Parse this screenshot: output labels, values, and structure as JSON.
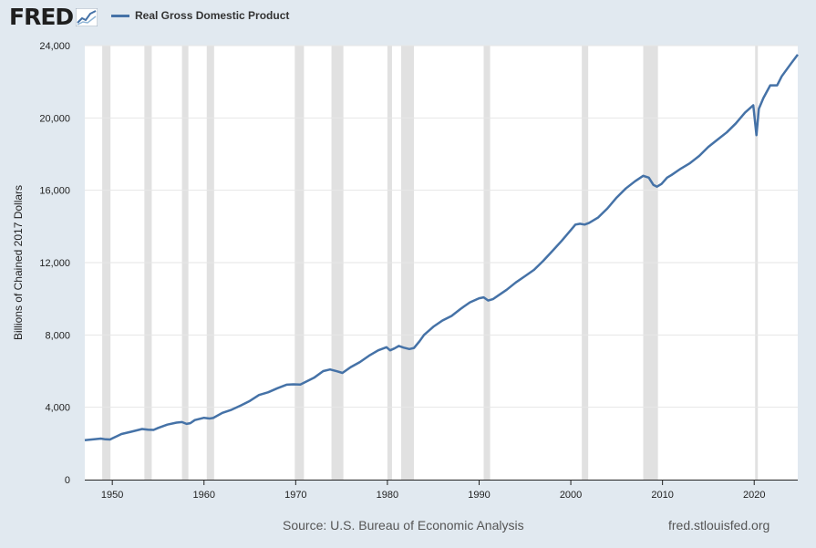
{
  "logo": {
    "text": "FRED",
    "icon": "line-chart-icon"
  },
  "legend": {
    "label": "Real Gross Domestic Product",
    "color": "#4572a7"
  },
  "footer": {
    "source": "Source: U.S. Bureau of Economic Analysis",
    "credit": "fred.stlouisfed.org"
  },
  "chart_data": {
    "type": "line",
    "ylabel": "Billions of Chained 2017 Dollars",
    "xlim": [
      1947,
      2024.75
    ],
    "ylim": [
      0,
      24000
    ],
    "yticks": [
      0,
      4000,
      8000,
      12000,
      16000,
      20000,
      24000
    ],
    "ytick_labels": [
      "0",
      "4,000",
      "8,000",
      "12,000",
      "16,000",
      "20,000",
      "24,000"
    ],
    "xticks": [
      1950,
      1960,
      1970,
      1980,
      1990,
      2000,
      2010,
      2020
    ],
    "xtick_labels": [
      "1950",
      "1960",
      "1970",
      "1980",
      "1990",
      "2000",
      "2010",
      "2020"
    ],
    "grid": true,
    "recession_color": "#e1e1e1",
    "recessions": [
      [
        1948.9,
        1949.8
      ],
      [
        1953.5,
        1954.3
      ],
      [
        1957.6,
        1958.3
      ],
      [
        1960.3,
        1961.1
      ],
      [
        1969.9,
        1970.9
      ],
      [
        1973.9,
        1975.2
      ],
      [
        1980.0,
        1980.5
      ],
      [
        1981.5,
        1982.9
      ],
      [
        1990.5,
        1991.2
      ],
      [
        2001.2,
        2001.9
      ],
      [
        2007.9,
        2009.5
      ],
      [
        2020.1,
        2020.4
      ]
    ],
    "series": [
      {
        "color": "#4572a7",
        "points": [
          [
            1947.0,
            2180
          ],
          [
            1948.0,
            2230
          ],
          [
            1948.75,
            2270
          ],
          [
            1949.25,
            2230
          ],
          [
            1949.75,
            2220
          ],
          [
            1950.0,
            2280
          ],
          [
            1951.0,
            2520
          ],
          [
            1952.0,
            2640
          ],
          [
            1953.25,
            2800
          ],
          [
            1953.9,
            2760
          ],
          [
            1954.5,
            2750
          ],
          [
            1955.0,
            2860
          ],
          [
            1956.0,
            3040
          ],
          [
            1957.0,
            3150
          ],
          [
            1957.6,
            3180
          ],
          [
            1958.1,
            3080
          ],
          [
            1958.5,
            3120
          ],
          [
            1959.0,
            3290
          ],
          [
            1960.0,
            3420
          ],
          [
            1960.6,
            3380
          ],
          [
            1961.0,
            3410
          ],
          [
            1962.0,
            3690
          ],
          [
            1963.0,
            3860
          ],
          [
            1964.0,
            4100
          ],
          [
            1965.0,
            4350
          ],
          [
            1966.0,
            4680
          ],
          [
            1967.0,
            4830
          ],
          [
            1968.0,
            5050
          ],
          [
            1969.0,
            5250
          ],
          [
            1969.75,
            5270
          ],
          [
            1970.5,
            5260
          ],
          [
            1971.0,
            5380
          ],
          [
            1972.0,
            5630
          ],
          [
            1973.0,
            6000
          ],
          [
            1973.75,
            6090
          ],
          [
            1974.5,
            5990
          ],
          [
            1975.1,
            5900
          ],
          [
            1976.0,
            6220
          ],
          [
            1977.0,
            6500
          ],
          [
            1978.0,
            6850
          ],
          [
            1979.0,
            7150
          ],
          [
            1979.9,
            7320
          ],
          [
            1980.3,
            7150
          ],
          [
            1980.75,
            7250
          ],
          [
            1981.25,
            7390
          ],
          [
            1981.75,
            7300
          ],
          [
            1982.4,
            7220
          ],
          [
            1982.9,
            7280
          ],
          [
            1983.5,
            7650
          ],
          [
            1984.0,
            8000
          ],
          [
            1985.0,
            8450
          ],
          [
            1986.0,
            8800
          ],
          [
            1987.0,
            9050
          ],
          [
            1988.0,
            9450
          ],
          [
            1989.0,
            9800
          ],
          [
            1990.0,
            10030
          ],
          [
            1990.5,
            10080
          ],
          [
            1991.0,
            9900
          ],
          [
            1991.5,
            9980
          ],
          [
            1992.0,
            10150
          ],
          [
            1993.0,
            10500
          ],
          [
            1994.0,
            10900
          ],
          [
            1995.0,
            11250
          ],
          [
            1996.0,
            11600
          ],
          [
            1997.0,
            12100
          ],
          [
            1998.0,
            12650
          ],
          [
            1999.0,
            13200
          ],
          [
            2000.0,
            13800
          ],
          [
            2000.5,
            14100
          ],
          [
            2001.0,
            14150
          ],
          [
            2001.5,
            14100
          ],
          [
            2002.0,
            14200
          ],
          [
            2003.0,
            14500
          ],
          [
            2004.0,
            15000
          ],
          [
            2005.0,
            15600
          ],
          [
            2006.0,
            16100
          ],
          [
            2007.0,
            16500
          ],
          [
            2007.9,
            16800
          ],
          [
            2008.5,
            16700
          ],
          [
            2009.0,
            16300
          ],
          [
            2009.4,
            16200
          ],
          [
            2009.9,
            16350
          ],
          [
            2010.5,
            16700
          ],
          [
            2011.0,
            16850
          ],
          [
            2012.0,
            17200
          ],
          [
            2013.0,
            17500
          ],
          [
            2014.0,
            17900
          ],
          [
            2015.0,
            18400
          ],
          [
            2016.0,
            18800
          ],
          [
            2017.0,
            19200
          ],
          [
            2018.0,
            19700
          ],
          [
            2019.0,
            20300
          ],
          [
            2019.9,
            20700
          ],
          [
            2020.25,
            19050
          ],
          [
            2020.5,
            20500
          ],
          [
            2021.0,
            21100
          ],
          [
            2021.75,
            21800
          ],
          [
            2022.5,
            21800
          ],
          [
            2023.0,
            22300
          ],
          [
            2024.0,
            23000
          ],
          [
            2024.75,
            23500
          ]
        ]
      }
    ]
  }
}
